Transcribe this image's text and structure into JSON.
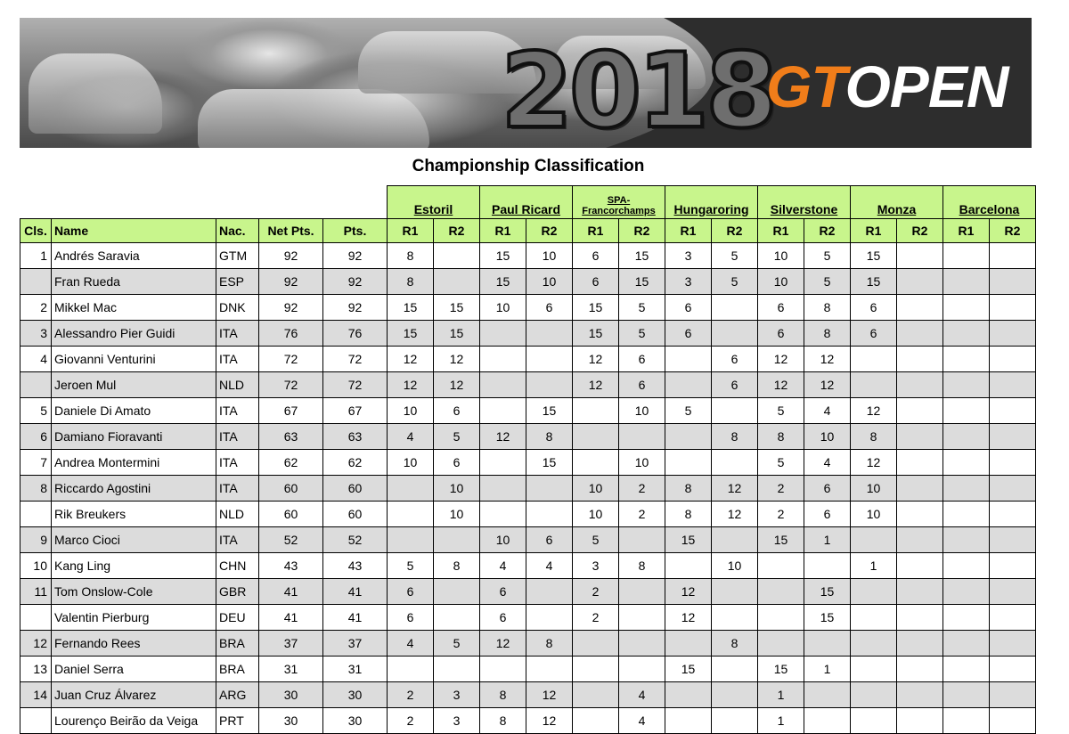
{
  "banner": {
    "year": "2018",
    "logo_gt": "GT",
    "logo_open": "OPEN"
  },
  "title": "Championship Classification",
  "events": [
    {
      "name": "Estoril"
    },
    {
      "name": "Paul Ricard"
    },
    {
      "name": "SPA-Francorchamps",
      "small": true,
      "line1": "SPA-",
      "line2": "Francorchamps"
    },
    {
      "name": "Hungaroring"
    },
    {
      "name": "Silverstone"
    },
    {
      "name": "Monza"
    },
    {
      "name": "Barcelona"
    }
  ],
  "columns": {
    "cls": "Cls.",
    "name": "Name",
    "nac": "Nac.",
    "net": "Net Pts.",
    "pts": "Pts.",
    "r1": "R1",
    "r2": "R2"
  },
  "rows": [
    {
      "cls": "1",
      "name": "Andrés Saravia",
      "nac": "GTM",
      "net": "92",
      "pts": "92",
      "races": [
        "8",
        "",
        "15",
        "10",
        "6",
        "15",
        "3",
        "5",
        "10",
        "5",
        "15",
        "",
        "",
        ""
      ]
    },
    {
      "cls": "",
      "name": "Fran Rueda",
      "nac": "ESP",
      "net": "92",
      "pts": "92",
      "races": [
        "8",
        "",
        "15",
        "10",
        "6",
        "15",
        "3",
        "5",
        "10",
        "5",
        "15",
        "",
        "",
        ""
      ]
    },
    {
      "cls": "2",
      "name": "Mikkel Mac",
      "nac": "DNK",
      "net": "92",
      "pts": "92",
      "races": [
        "15",
        "15",
        "10",
        "6",
        "15",
        "5",
        "6",
        "",
        "6",
        "8",
        "6",
        "",
        "",
        ""
      ]
    },
    {
      "cls": "3",
      "name": "Alessandro Pier Guidi",
      "nac": "ITA",
      "net": "76",
      "pts": "76",
      "races": [
        "15",
        "15",
        "",
        "",
        "15",
        "5",
        "6",
        "",
        "6",
        "8",
        "6",
        "",
        "",
        ""
      ]
    },
    {
      "cls": "4",
      "name": "Giovanni Venturini",
      "nac": "ITA",
      "net": "72",
      "pts": "72",
      "races": [
        "12",
        "12",
        "",
        "",
        "12",
        "6",
        "",
        "6",
        "12",
        "12",
        "",
        "",
        "",
        ""
      ]
    },
    {
      "cls": "",
      "name": "Jeroen Mul",
      "nac": "NLD",
      "net": "72",
      "pts": "72",
      "races": [
        "12",
        "12",
        "",
        "",
        "12",
        "6",
        "",
        "6",
        "12",
        "12",
        "",
        "",
        "",
        ""
      ]
    },
    {
      "cls": "5",
      "name": "Daniele Di Amato",
      "nac": "ITA",
      "net": "67",
      "pts": "67",
      "races": [
        "10",
        "6",
        "",
        "15",
        "",
        "10",
        "5",
        "",
        "5",
        "4",
        "12",
        "",
        "",
        ""
      ]
    },
    {
      "cls": "6",
      "name": "Damiano Fioravanti",
      "nac": "ITA",
      "net": "63",
      "pts": "63",
      "races": [
        "4",
        "5",
        "12",
        "8",
        "",
        "",
        "",
        "8",
        "8",
        "10",
        "8",
        "",
        "",
        ""
      ]
    },
    {
      "cls": "7",
      "name": "Andrea Montermini",
      "nac": "ITA",
      "net": "62",
      "pts": "62",
      "races": [
        "10",
        "6",
        "",
        "15",
        "",
        "10",
        "",
        "",
        "5",
        "4",
        "12",
        "",
        "",
        ""
      ]
    },
    {
      "cls": "8",
      "name": "Riccardo Agostini",
      "nac": "ITA",
      "net": "60",
      "pts": "60",
      "races": [
        "",
        "10",
        "",
        "",
        "10",
        "2",
        "8",
        "12",
        "2",
        "6",
        "10",
        "",
        "",
        ""
      ]
    },
    {
      "cls": "",
      "name": "Rik Breukers",
      "nac": "NLD",
      "net": "60",
      "pts": "60",
      "races": [
        "",
        "10",
        "",
        "",
        "10",
        "2",
        "8",
        "12",
        "2",
        "6",
        "10",
        "",
        "",
        ""
      ]
    },
    {
      "cls": "9",
      "name": "Marco Cioci",
      "nac": "ITA",
      "net": "52",
      "pts": "52",
      "races": [
        "",
        "",
        "10",
        "6",
        "5",
        "",
        "15",
        "",
        "15",
        "1",
        "",
        "",
        "",
        ""
      ]
    },
    {
      "cls": "10",
      "name": "Kang Ling",
      "nac": "CHN",
      "net": "43",
      "pts": "43",
      "races": [
        "5",
        "8",
        "4",
        "4",
        "3",
        "8",
        "",
        "10",
        "",
        "",
        "1",
        "",
        "",
        ""
      ]
    },
    {
      "cls": "11",
      "name": "Tom Onslow-Cole",
      "nac": "GBR",
      "net": "41",
      "pts": "41",
      "races": [
        "6",
        "",
        "6",
        "",
        "2",
        "",
        "12",
        "",
        "",
        "15",
        "",
        "",
        "",
        ""
      ]
    },
    {
      "cls": "",
      "name": "Valentin Pierburg",
      "nac": "DEU",
      "net": "41",
      "pts": "41",
      "races": [
        "6",
        "",
        "6",
        "",
        "2",
        "",
        "12",
        "",
        "",
        "15",
        "",
        "",
        "",
        ""
      ]
    },
    {
      "cls": "12",
      "name": "Fernando Rees",
      "nac": "BRA",
      "net": "37",
      "pts": "37",
      "races": [
        "4",
        "5",
        "12",
        "8",
        "",
        "",
        "",
        "8",
        "",
        "",
        "",
        "",
        "",
        ""
      ]
    },
    {
      "cls": "13",
      "name": "Daniel Serra",
      "nac": "BRA",
      "net": "31",
      "pts": "31",
      "races": [
        "",
        "",
        "",
        "",
        "",
        "",
        "15",
        "",
        "15",
        "1",
        "",
        "",
        "",
        ""
      ]
    },
    {
      "cls": "14",
      "name": "Juan Cruz Álvarez",
      "nac": "ARG",
      "net": "30",
      "pts": "30",
      "races": [
        "2",
        "3",
        "8",
        "12",
        "",
        "4",
        "",
        "",
        "1",
        "",
        "",
        "",
        "",
        ""
      ]
    },
    {
      "cls": "",
      "name": "Lourenço Beirão da Veiga",
      "nac": "PRT",
      "net": "30",
      "pts": "30",
      "races": [
        "2",
        "3",
        "8",
        "12",
        "",
        "4",
        "",
        "",
        "1",
        "",
        "",
        "",
        "",
        ""
      ]
    }
  ]
}
